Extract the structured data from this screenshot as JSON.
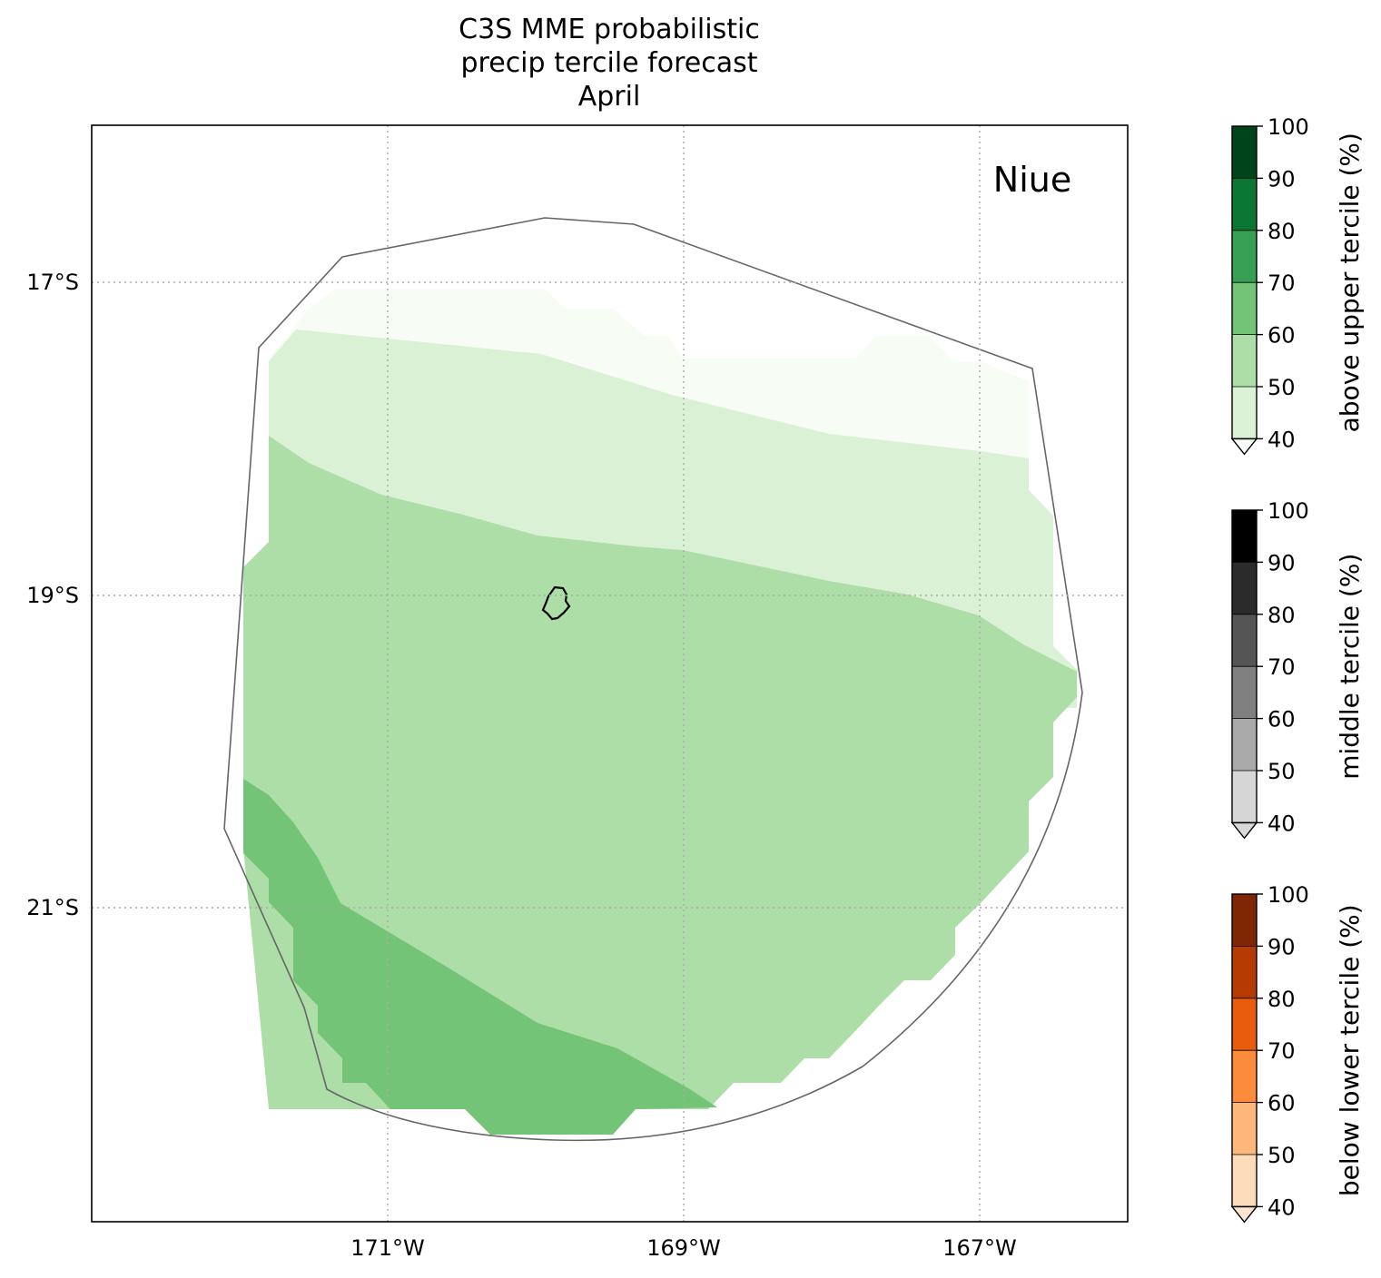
{
  "title": {
    "line1": "C3S MME probabilistic",
    "line2": "precip tercile forecast",
    "line3": "April"
  },
  "map": {
    "region_label": "Niue",
    "lon_ticks": [
      "171°W",
      "169°W",
      "167°W"
    ],
    "lat_ticks": [
      "17°S",
      "19°S",
      "21°S"
    ],
    "grid": "dotted",
    "colors": {
      "frame": "#000000",
      "grid": "#aaaaaa",
      "region_outline": "#666666",
      "island_outline": "#000000"
    },
    "shaded_classes": [
      {
        "category": "above upper tercile",
        "range": "40-50",
        "color": "#f7fcf5"
      },
      {
        "category": "above upper tercile",
        "range": "50-60",
        "color": "#dbf1d6"
      },
      {
        "category": "above upper tercile",
        "range": "60-70",
        "color": "#aedea7"
      },
      {
        "category": "above upper tercile",
        "range": "70-80",
        "color": "#73c476"
      }
    ]
  },
  "colorbars": [
    {
      "label": "above upper tercile (%)",
      "ticks": [
        "40",
        "50",
        "60",
        "70",
        "80",
        "90",
        "100"
      ],
      "extend": "min",
      "colors": [
        "#f7fcf5",
        "#dbf1d6",
        "#aedea7",
        "#73c476",
        "#37a055",
        "#0b7734",
        "#00441b"
      ]
    },
    {
      "label": "middle tercile (%)",
      "ticks": [
        "40",
        "50",
        "60",
        "70",
        "80",
        "90",
        "100"
      ],
      "extend": "min",
      "colors": [
        "#d9d9d9",
        "#d6d6d6",
        "#aaaaaa",
        "#808080",
        "#555555",
        "#2b2b2b",
        "#000000"
      ]
    },
    {
      "label": "below lower tercile (%)",
      "ticks": [
        "40",
        "50",
        "60",
        "70",
        "80",
        "90",
        "100"
      ],
      "extend": "min",
      "colors": [
        "#fee6ce",
        "#fddcbb",
        "#fdb77a",
        "#fc8b3b",
        "#e85c0d",
        "#b53b02",
        "#7f2704"
      ]
    }
  ]
}
